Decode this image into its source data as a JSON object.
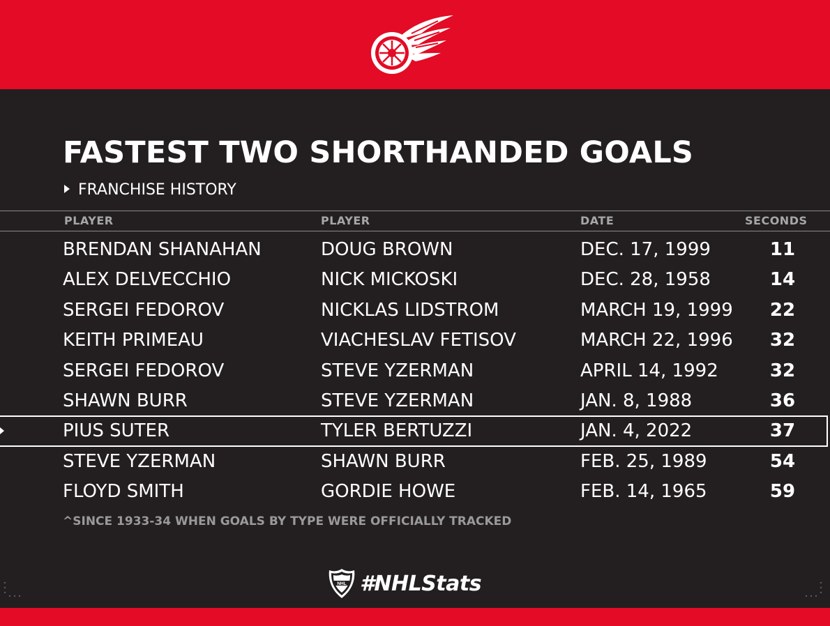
{
  "header": {
    "logo_icon": "winged-wheel-icon"
  },
  "title": "FASTEST TWO SHORTHANDED GOALS",
  "subtitle": "FRANCHISE HISTORY",
  "columns": [
    "PLAYER",
    "PLAYER",
    "DATE",
    "SECONDS"
  ],
  "rows": [
    {
      "player1": "BRENDAN SHANAHAN",
      "player2": "DOUG BROWN",
      "date": "DEC. 17, 1999",
      "seconds": "11"
    },
    {
      "player1": "ALEX DELVECCHIO",
      "player2": "NICK MICKOSKI",
      "date": "DEC. 28, 1958",
      "seconds": "14"
    },
    {
      "player1": "SERGEI FEDOROV",
      "player2": "NICKLAS LIDSTROM",
      "date": "MARCH 19, 1999",
      "seconds": "22"
    },
    {
      "player1": "KEITH PRIMEAU",
      "player2": "VIACHESLAV FETISOV",
      "date": "MARCH 22, 1996",
      "seconds": "32"
    },
    {
      "player1": "SERGEI FEDOROV",
      "player2": "STEVE YZERMAN",
      "date": "APRIL 14, 1992",
      "seconds": "32"
    },
    {
      "player1": "SHAWN BURR",
      "player2": "STEVE YZERMAN",
      "date": "JAN. 8, 1988",
      "seconds": "36"
    },
    {
      "player1": "PIUS SUTER",
      "player2": "TYLER BERTUZZI",
      "date": "JAN. 4, 2022",
      "seconds": "37"
    },
    {
      "player1": "STEVE YZERMAN",
      "player2": "SHAWN BURR",
      "date": "FEB. 25, 1989",
      "seconds": "54"
    },
    {
      "player1": "FLOYD SMITH",
      "player2": "GORDIE HOWE",
      "date": "FEB. 14, 1965",
      "seconds": "59"
    }
  ],
  "highlighted_row": 6,
  "footnote": "^SINCE 1933-34 WHEN GOALS BY TYPE WERE OFFICIALLY TRACKED",
  "footer": {
    "hashtag": "#NHLStats",
    "shield_icon": "nhl-shield-icon"
  },
  "colors": {
    "brand_red": "#e30b25",
    "background": "#231f20",
    "text": "#ffffff",
    "muted": "#a7a7a7"
  }
}
